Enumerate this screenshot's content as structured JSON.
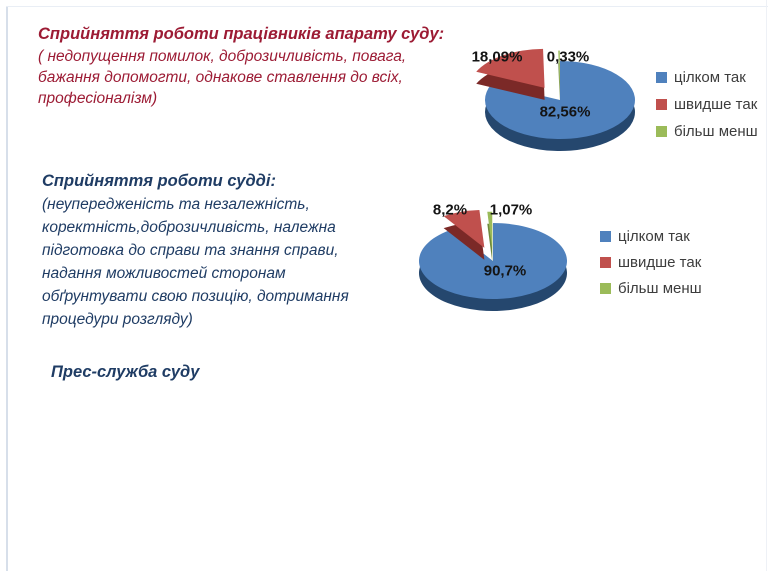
{
  "page": {
    "background": "#ffffff",
    "edge_line_color": "#d7dfea"
  },
  "sections": {
    "staff": {
      "title": "Сприйняття роботи працівників апарату суду:",
      "subtitle": "( недопущення помилок, доброзичливість, повага,\nбажання допомогти, однакове ставлення до всіх,\nпрофесіоналізм)",
      "color": "#9c1b34"
    },
    "judge": {
      "title": "Сприйняття роботи судді:",
      "subtitle": "(неупередженість та незалежність,\nкоректність,доброзичливість, належна\nпідготовка до справи та знання справи,\nнадання можливостей сторонам\nобґрунтувати свою позицію, дотримання\nпроцедури розгляду)",
      "color": "#1f3c64"
    }
  },
  "footer": {
    "press_service": "Прес-служба суду"
  },
  "chart_data": [
    {
      "type": "pie",
      "labels": [
        "цілком так",
        "швидше так",
        "більш менш"
      ],
      "values": [
        82.56,
        18.09,
        0.33
      ],
      "value_labels": [
        "82,56%",
        "18,09%",
        "0,33%"
      ],
      "colors": [
        "#4f81bd",
        "#c0504d",
        "#9bbb59"
      ],
      "side_colors": [
        "#25476e",
        "#7b2927",
        "#6f8a3d"
      ],
      "legend_position": "right",
      "effect_3d": true,
      "exploded": [
        false,
        true,
        true
      ],
      "label_color": "#141414"
    },
    {
      "type": "pie",
      "labels": [
        "цілком так",
        "швидше так",
        "більш менш"
      ],
      "values": [
        90.7,
        8.2,
        1.07
      ],
      "value_labels": [
        "90,7%",
        "8,2%",
        "1,07%"
      ],
      "colors": [
        "#4f81bd",
        "#c0504d",
        "#9bbb59"
      ],
      "side_colors": [
        "#25476e",
        "#7b2927",
        "#6f8a3d"
      ],
      "legend_position": "right",
      "effect_3d": true,
      "exploded": [
        false,
        true,
        true
      ],
      "label_color": "#141414"
    }
  ]
}
